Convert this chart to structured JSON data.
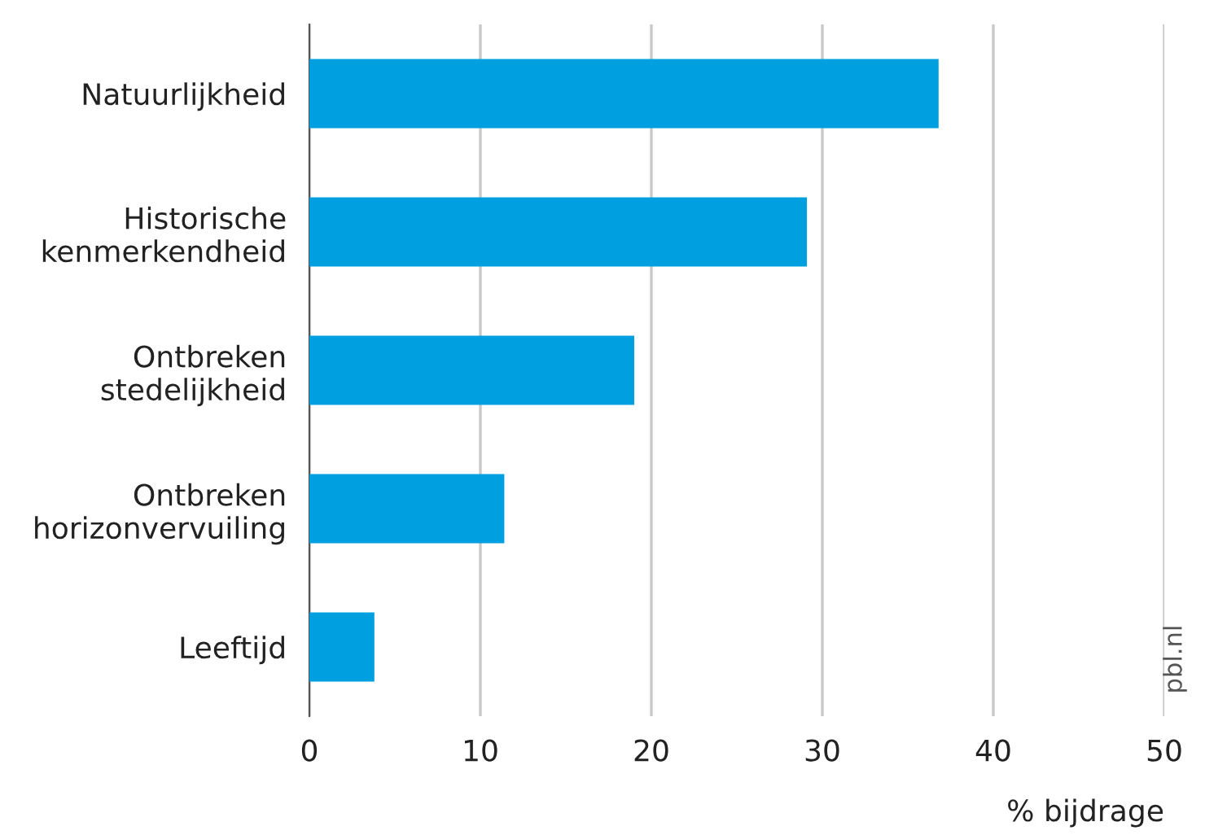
{
  "chart_data": {
    "type": "bar",
    "orientation": "horizontal",
    "categories": [
      "Natuurlijkheid",
      "Historische\nkenmerkendheid",
      "Ontbreken\nstedelijkheid",
      "Ontbreken\nhorizonvervuiling",
      "Leeftijd"
    ],
    "values": [
      36.8,
      29.1,
      19.0,
      11.4,
      3.8
    ],
    "color": "#009fe0",
    "xlim": [
      0,
      50
    ],
    "xticks": [
      0,
      10,
      20,
      30,
      40,
      50
    ],
    "grid": "x",
    "xlabel": "% bijdrage",
    "annotations": [
      "pbl.nl"
    ]
  }
}
